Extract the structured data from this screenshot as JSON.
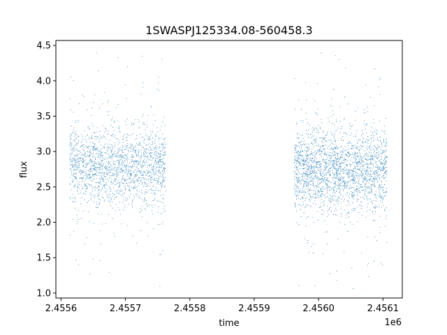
{
  "chart_data": {
    "type": "scatter",
    "title": "1SWASPJ125334.08-560458.3",
    "xlabel": "time",
    "ylabel": "flux",
    "x_offset_label": "1e6",
    "xlim": [
      2455592,
      2456130
    ],
    "ylim": [
      0.93,
      4.57
    ],
    "xticks": [
      2455600,
      2455700,
      2455800,
      2455900,
      2456000,
      2456100
    ],
    "xtick_labels": [
      "2.4556",
      "2.4557",
      "2.4558",
      "2.4559",
      "2.4560",
      "2.4561"
    ],
    "yticks": [
      1.0,
      1.5,
      2.0,
      2.5,
      3.0,
      3.5,
      4.0,
      4.5
    ],
    "ytick_labels": [
      "1.0",
      "1.5",
      "2.0",
      "2.5",
      "3.0",
      "3.5",
      "4.0",
      "4.5"
    ],
    "grid": false,
    "marker_color": "#1f77b4",
    "series": [
      {
        "segments": [
          {
            "x_range": [
              2455613,
              2455762
            ],
            "y_center": 2.8,
            "y_core_spread": 0.26,
            "y_extreme": [
              1.1,
              4.4
            ],
            "approx_points": 1900
          },
          {
            "x_range": [
              2455962,
              2456106
            ],
            "y_center": 2.75,
            "y_core_spread": 0.28,
            "y_extreme": [
              1.05,
              4.4
            ],
            "approx_points": 2600
          }
        ]
      }
    ]
  }
}
